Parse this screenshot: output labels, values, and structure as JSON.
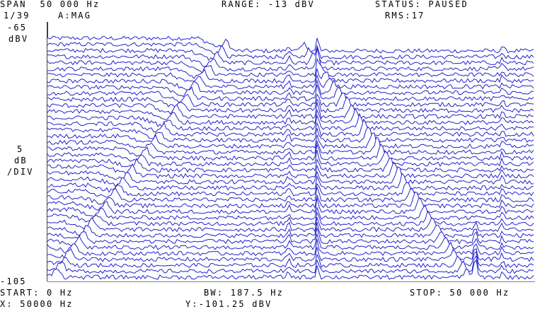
{
  "header": {
    "span": "SPAN  50 000 Hz",
    "range": "RANGE: -13 dBV",
    "status": "STATUS: PAUSED",
    "trace_index": "1/39",
    "trace_mode": "A:MAG",
    "rms": "RMS:17"
  },
  "y_axis": {
    "top_value": "-65",
    "top_unit": "dBV",
    "scale_value": "5",
    "scale_unit": "dB",
    "scale_per": "/DIV",
    "bottom_value": "-105"
  },
  "footer": {
    "start": "START: 0 Hz",
    "bw": "BW: 187.5 Hz",
    "stop": "STOP: 50 000 Hz",
    "x_readout": "X: 50000 Hz",
    "y_readout": "Y:-101.25 dBV"
  },
  "colors": {
    "trace": "#2222cc",
    "text": "#000000",
    "background": "#ffffff"
  },
  "chart_data": {
    "type": "line",
    "chart_style": "waterfall",
    "trace_count": 39,
    "x_range": [
      0,
      50000
    ],
    "y_range": [
      -105,
      -65
    ],
    "grid": false
  }
}
